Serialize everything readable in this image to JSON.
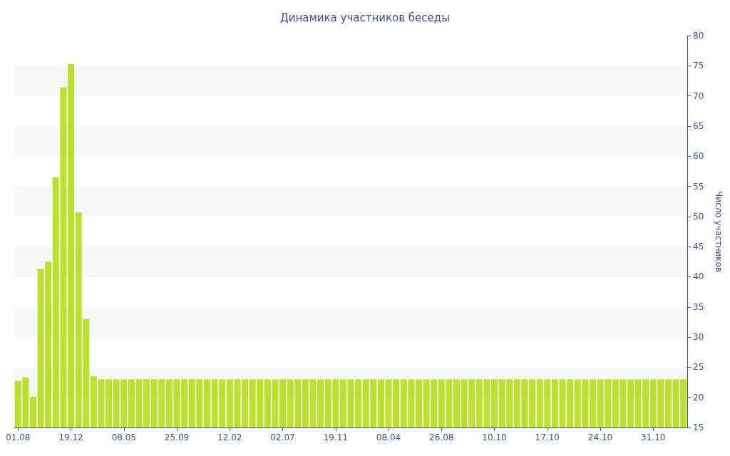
{
  "chart_data": {
    "type": "bar",
    "title": "Динамика участников беседы",
    "ylabel": "Число участников",
    "categories": [
      "01.08",
      null,
      null,
      null,
      null,
      null,
      null,
      "19.12",
      null,
      null,
      null,
      null,
      null,
      null,
      "08.05",
      null,
      null,
      null,
      null,
      null,
      null,
      "25.09",
      null,
      null,
      null,
      null,
      null,
      null,
      "12.02",
      null,
      null,
      null,
      null,
      null,
      null,
      "02.07",
      null,
      null,
      null,
      null,
      null,
      null,
      "19.11",
      null,
      null,
      null,
      null,
      null,
      null,
      "08.04",
      null,
      null,
      null,
      null,
      null,
      null,
      "26.08",
      null,
      null,
      null,
      null,
      null,
      null,
      "10.10",
      null,
      null,
      null,
      null,
      null,
      null,
      "17.10",
      null,
      null,
      null,
      null,
      null,
      null,
      "24.10",
      null,
      null,
      null,
      null,
      null,
      null,
      "31.10",
      null,
      null,
      null,
      null
    ],
    "values": [
      22.7,
      23.3,
      20.1,
      41.3,
      42.5,
      56.5,
      71.4,
      75.3,
      50.7,
      33,
      23.5,
      23,
      23,
      23,
      23,
      23,
      23,
      23,
      23,
      23,
      23,
      23,
      23,
      23,
      23,
      23,
      23,
      23,
      23,
      23,
      23,
      23,
      23,
      23,
      23,
      23,
      23,
      23,
      23,
      23,
      23,
      23,
      23,
      23,
      23,
      23,
      23,
      23,
      23,
      23,
      23,
      23,
      23,
      23,
      23,
      23,
      23,
      23,
      23,
      23,
      23,
      23,
      23,
      23,
      23,
      23,
      23,
      23,
      23,
      23,
      23,
      23,
      23,
      23,
      23,
      23,
      23,
      23,
      23,
      23,
      23,
      23,
      23,
      23,
      23,
      23,
      23,
      23,
      23
    ],
    "color": "#bde02f",
    "ylim": [
      15,
      80
    ],
    "yticks": [
      15,
      20,
      25,
      30,
      35,
      40,
      45,
      50,
      55,
      60,
      65,
      70,
      75,
      80
    ]
  }
}
